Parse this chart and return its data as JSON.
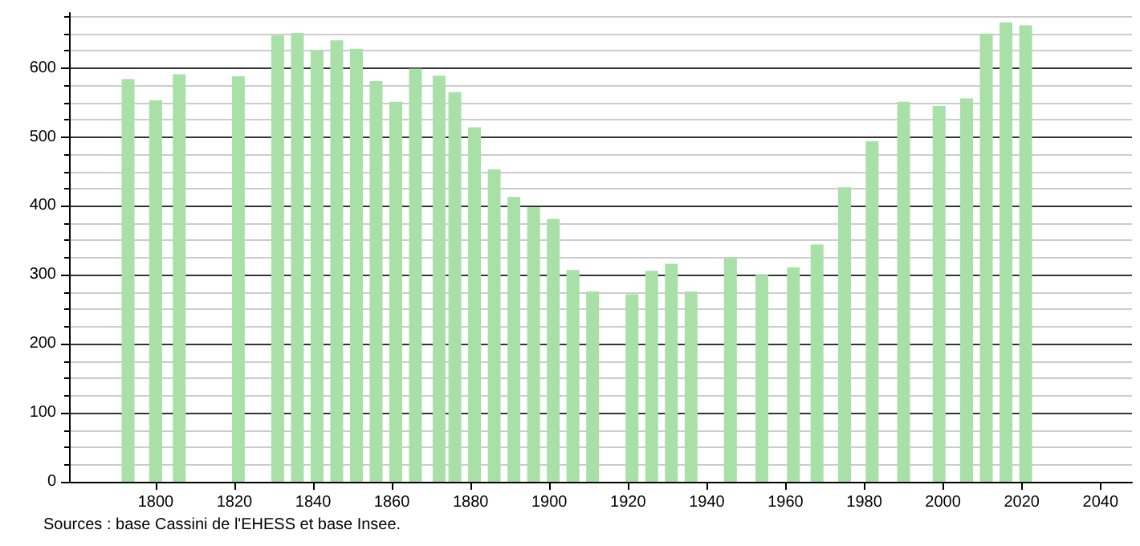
{
  "chart_data": {
    "type": "bar",
    "x": [
      1793,
      1800,
      1806,
      1821,
      1831,
      1836,
      1841,
      1846,
      1851,
      1856,
      1861,
      1866,
      1872,
      1876,
      1881,
      1886,
      1891,
      1896,
      1901,
      1906,
      1911,
      1921,
      1926,
      1931,
      1936,
      1946,
      1954,
      1962,
      1968,
      1975,
      1982,
      1990,
      1999,
      2006,
      2011,
      2016,
      2021
    ],
    "values": [
      584,
      553,
      591,
      588,
      647,
      651,
      626,
      640,
      628,
      581,
      551,
      599,
      589,
      565,
      514,
      453,
      413,
      398,
      381,
      307,
      276,
      272,
      306,
      316,
      276,
      325,
      300,
      311,
      344,
      427,
      494,
      551,
      545,
      556,
      650,
      666,
      662
    ],
    "color": "#a8e0a8",
    "xlim": [
      1778,
      2048
    ],
    "xticks": [
      1800,
      1820,
      1840,
      1860,
      1880,
      1900,
      1920,
      1940,
      1960,
      1980,
      2000,
      2020,
      2040
    ],
    "ylim": [
      0,
      680
    ],
    "yticks": [
      0,
      100,
      200,
      300,
      400,
      500,
      600
    ],
    "grid": "y",
    "annotations": [
      "Sources : base Cassini de l'EHESS et base Insee."
    ]
  }
}
